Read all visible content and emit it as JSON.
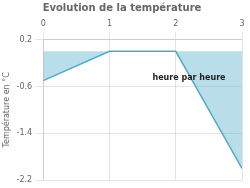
{
  "chart_data": {
    "type": "line",
    "title": "Evolution de la température",
    "ylabel": "Température en °C",
    "x": [
      0,
      1,
      2,
      3
    ],
    "values": [
      -0.5,
      0.0,
      0.0,
      -2.0
    ],
    "color": "#50aac8",
    "xlim": [
      0,
      3
    ],
    "xticks": [
      0,
      1,
      2,
      3
    ],
    "ylim": [
      -2.2,
      0.2
    ],
    "yticks": [
      0.2,
      -0.6,
      -1.4,
      -2.2
    ],
    "grid": true,
    "annotations": [
      {
        "text": "heure par heure",
        "x": 2.2,
        "y": -0.38
      }
    ]
  }
}
